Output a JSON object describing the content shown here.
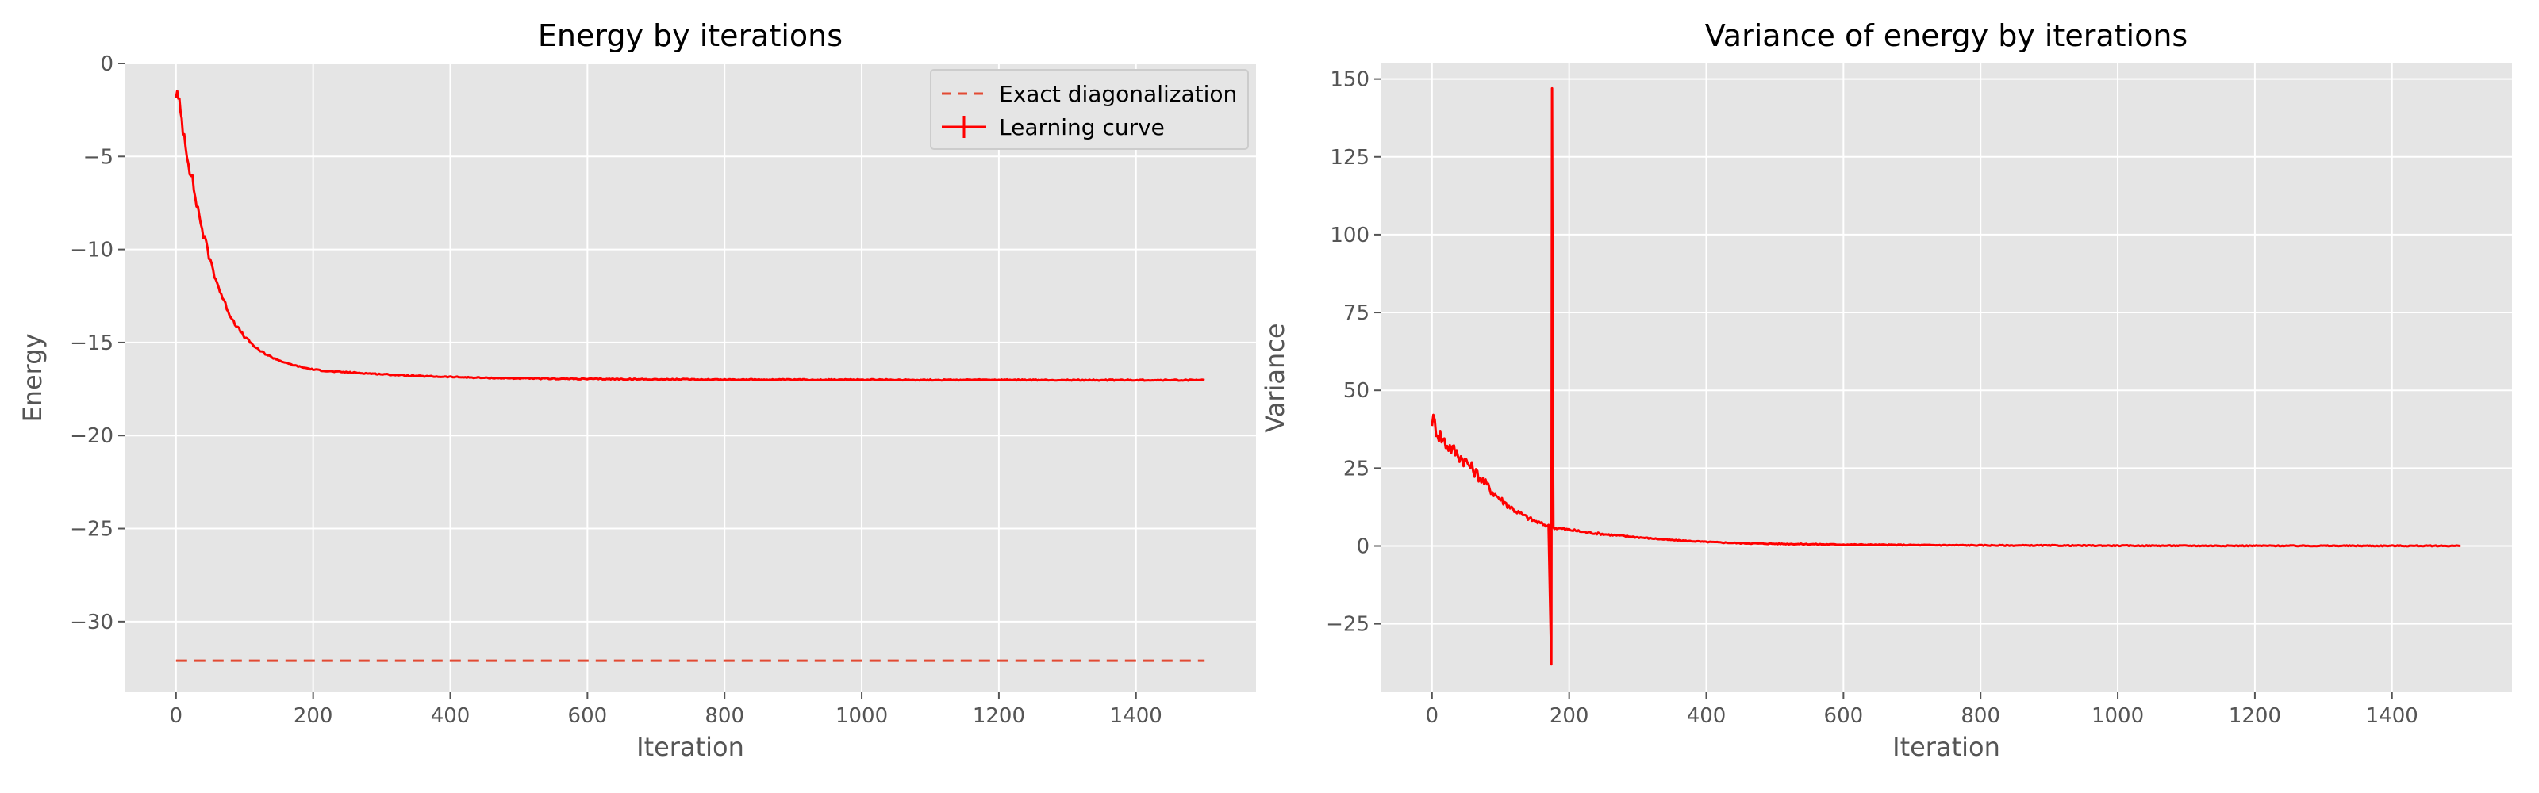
{
  "chart_data": [
    {
      "type": "line",
      "title": "Energy by iterations",
      "xlabel": "Iteration",
      "ylabel": "Energy",
      "xlim": [
        -75,
        1575
      ],
      "ylim": [
        -33.8,
        0
      ],
      "xticks": [
        0,
        200,
        400,
        600,
        800,
        1000,
        1200,
        1400
      ],
      "yticks": [
        0,
        -5,
        -10,
        -15,
        -20,
        -25,
        -30
      ],
      "grid": true,
      "legend_position": "top-right",
      "series": [
        {
          "name": "Exact diagonalization",
          "style": "dashed",
          "color": "#e24a33",
          "x": [
            0,
            1500
          ],
          "y": [
            -32.1,
            -32.1
          ]
        },
        {
          "name": "Learning curve",
          "style": "solid",
          "color": "#ff0000",
          "x": [
            0,
            5,
            10,
            20,
            30,
            40,
            50,
            60,
            70,
            80,
            90,
            100,
            120,
            140,
            160,
            180,
            200,
            225,
            250,
            275,
            300,
            350,
            400,
            450,
            500,
            600,
            700,
            800,
            900,
            1000,
            1100,
            1200,
            1300,
            1400,
            1500
          ],
          "y": [
            -1.5,
            -2.3,
            -3.4,
            -5.6,
            -7.5,
            -9.2,
            -10.6,
            -11.8,
            -12.8,
            -13.6,
            -14.2,
            -14.7,
            -15.4,
            -15.8,
            -16.1,
            -16.3,
            -16.45,
            -16.55,
            -16.6,
            -16.65,
            -16.7,
            -16.8,
            -16.85,
            -16.9,
            -16.93,
            -16.96,
            -16.98,
            -16.99,
            -17.0,
            -17.0,
            -17.01,
            -17.01,
            -17.02,
            -17.02,
            -17.02
          ]
        }
      ]
    },
    {
      "type": "line",
      "title": "Variance of energy by iterations",
      "xlabel": "Iteration",
      "ylabel": "Variance",
      "xlim": [
        -75,
        1575
      ],
      "ylim": [
        -47,
        155
      ],
      "xticks": [
        0,
        200,
        400,
        600,
        800,
        1000,
        1200,
        1400
      ],
      "yticks": [
        150,
        125,
        100,
        75,
        50,
        25,
        0,
        -25
      ],
      "grid": true,
      "series": [
        {
          "color": "#ff0000",
          "x": [
            0,
            10,
            20,
            30,
            40,
            50,
            60,
            70,
            80,
            90,
            100,
            110,
            120,
            130,
            140,
            150,
            160,
            170,
            174,
            175,
            176,
            177,
            180,
            200,
            225,
            250,
            275,
            300,
            350,
            400,
            450,
            500,
            600,
            700,
            800,
            900,
            1000,
            1100,
            1200,
            1300,
            1400,
            1500
          ],
          "y": [
            41,
            36,
            33,
            31,
            29,
            27,
            24.5,
            22,
            19.5,
            17,
            15,
            13.2,
            11.6,
            10.2,
            9,
            8,
            7.1,
            6.4,
            -38,
            147,
            55,
            6,
            5.8,
            5.2,
            4.4,
            3.8,
            3.3,
            2.8,
            1.9,
            1.3,
            0.9,
            0.7,
            0.45,
            0.3,
            0.2,
            0.15,
            0.1,
            0.08,
            0.06,
            0.05,
            0.04,
            0.03
          ]
        }
      ]
    }
  ]
}
